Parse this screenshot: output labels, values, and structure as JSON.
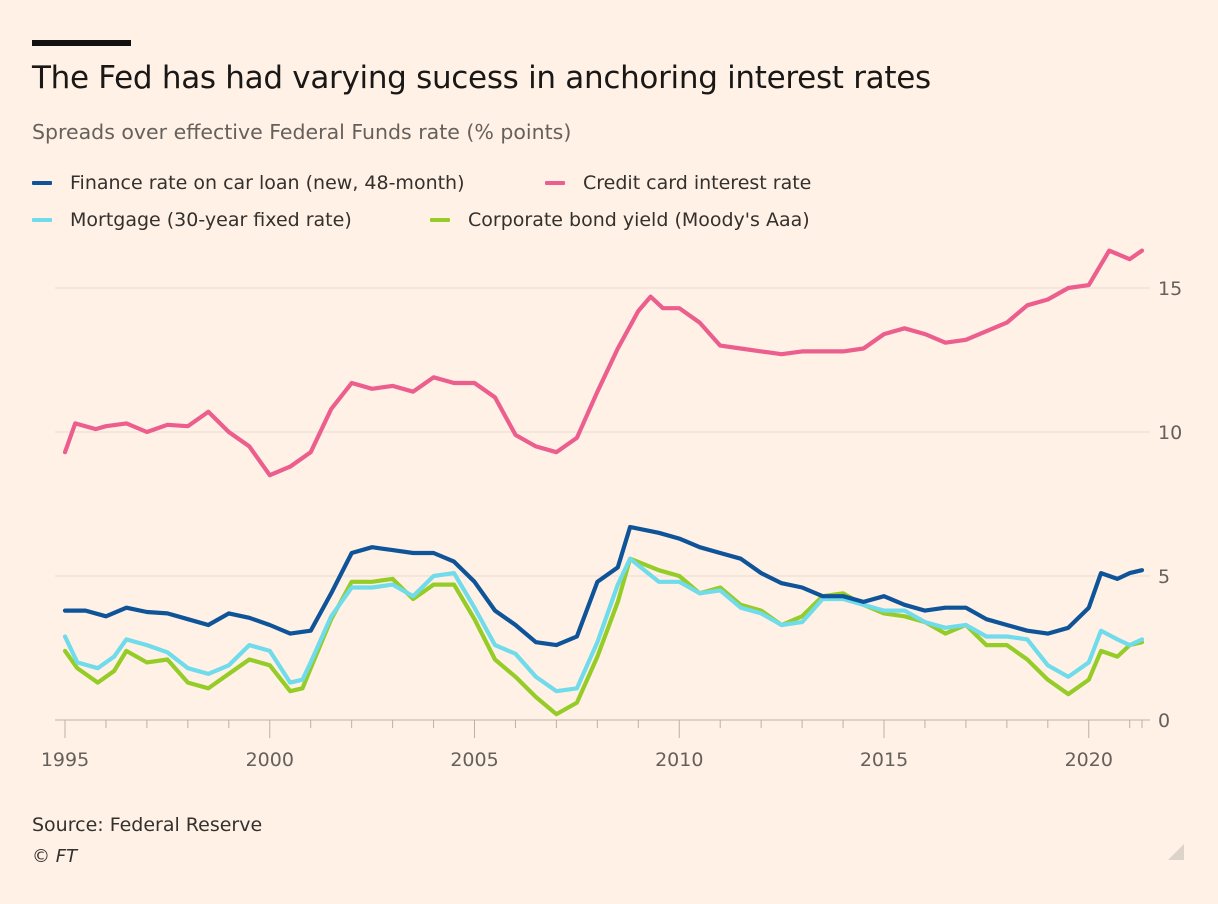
{
  "header": {
    "title": "The Fed has had varying sucess in anchoring interest rates",
    "subtitle": "Spreads over effective Federal Funds rate (% points)"
  },
  "legend": [
    {
      "label": "Finance rate on car loan (new, 48-month)",
      "color": "#0f5499"
    },
    {
      "label": "Credit card interest rate",
      "color": "#eb5e8d"
    },
    {
      "label": "Mortgage (30-year fixed rate)",
      "color": "#70dbea"
    },
    {
      "label": "Corporate bond yield (Moody's Aaa)",
      "color": "#96cc28"
    }
  ],
  "footer": {
    "source": "Source: Federal Reserve",
    "credit": "© FT"
  },
  "chart_data": {
    "type": "line",
    "title": "The Fed has had varying sucess in anchoring interest rates",
    "subtitle": "Spreads over effective Federal Funds rate (% points)",
    "xlabel": "",
    "ylabel": "",
    "xlim": [
      1995,
      2021.3
    ],
    "ylim": [
      0,
      16.5
    ],
    "x_ticks": [
      1995,
      2000,
      2005,
      2010,
      2015,
      2020
    ],
    "y_ticks": [
      0,
      5,
      10,
      15
    ],
    "y_axis_side": "right",
    "grid": "horizontal",
    "series": [
      {
        "name": "Finance rate on car loan (new, 48-month)",
        "color": "#0f5499",
        "points": [
          [
            1995,
            3.8
          ],
          [
            1995.5,
            3.8
          ],
          [
            1996,
            3.6
          ],
          [
            1996.5,
            3.9
          ],
          [
            1997,
            3.75
          ],
          [
            1997.5,
            3.7
          ],
          [
            1998,
            3.5
          ],
          [
            1998.5,
            3.3
          ],
          [
            1999,
            3.7
          ],
          [
            1999.5,
            3.55
          ],
          [
            2000,
            3.3
          ],
          [
            2000.5,
            3.0
          ],
          [
            2001,
            3.1
          ],
          [
            2001.5,
            4.4
          ],
          [
            2002,
            5.8
          ],
          [
            2002.5,
            6.0
          ],
          [
            2003,
            5.9
          ],
          [
            2003.5,
            5.8
          ],
          [
            2004,
            5.8
          ],
          [
            2004.5,
            5.5
          ],
          [
            2005,
            4.8
          ],
          [
            2005.5,
            3.8
          ],
          [
            2006,
            3.3
          ],
          [
            2006.5,
            2.7
          ],
          [
            2007,
            2.6
          ],
          [
            2007.5,
            2.9
          ],
          [
            2008,
            4.8
          ],
          [
            2008.5,
            5.3
          ],
          [
            2008.8,
            6.7
          ],
          [
            2009.5,
            6.5
          ],
          [
            2010,
            6.3
          ],
          [
            2010.5,
            6.0
          ],
          [
            2011,
            5.8
          ],
          [
            2011.5,
            5.6
          ],
          [
            2012,
            5.1
          ],
          [
            2012.5,
            4.75
          ],
          [
            2013,
            4.6
          ],
          [
            2013.5,
            4.3
          ],
          [
            2014,
            4.3
          ],
          [
            2014.5,
            4.1
          ],
          [
            2015,
            4.3
          ],
          [
            2015.5,
            4.0
          ],
          [
            2016,
            3.8
          ],
          [
            2016.5,
            3.9
          ],
          [
            2017,
            3.9
          ],
          [
            2017.5,
            3.5
          ],
          [
            2018,
            3.3
          ],
          [
            2018.5,
            3.1
          ],
          [
            2019,
            3.0
          ],
          [
            2019.5,
            3.2
          ],
          [
            2020,
            3.9
          ],
          [
            2020.3,
            5.1
          ],
          [
            2020.7,
            4.9
          ],
          [
            2021,
            5.1
          ],
          [
            2021.3,
            5.2
          ]
        ]
      },
      {
        "name": "Credit card interest rate",
        "color": "#eb5e8d",
        "points": [
          [
            1995,
            9.3
          ],
          [
            1995.25,
            10.3
          ],
          [
            1995.75,
            10.1
          ],
          [
            1996,
            10.2
          ],
          [
            1996.5,
            10.3
          ],
          [
            1997,
            10.0
          ],
          [
            1997.5,
            10.25
          ],
          [
            1998,
            10.2
          ],
          [
            1998.5,
            10.7
          ],
          [
            1999,
            10.0
          ],
          [
            1999.5,
            9.5
          ],
          [
            2000,
            8.5
          ],
          [
            2000.5,
            8.8
          ],
          [
            2001,
            9.3
          ],
          [
            2001.5,
            10.8
          ],
          [
            2002,
            11.7
          ],
          [
            2002.5,
            11.5
          ],
          [
            2003,
            11.6
          ],
          [
            2003.5,
            11.4
          ],
          [
            2004,
            11.9
          ],
          [
            2004.5,
            11.7
          ],
          [
            2005,
            11.7
          ],
          [
            2005.5,
            11.2
          ],
          [
            2006,
            9.9
          ],
          [
            2006.5,
            9.5
          ],
          [
            2007,
            9.3
          ],
          [
            2007.5,
            9.8
          ],
          [
            2008,
            11.4
          ],
          [
            2008.5,
            12.9
          ],
          [
            2009,
            14.2
          ],
          [
            2009.3,
            14.7
          ],
          [
            2009.6,
            14.3
          ],
          [
            2010,
            14.3
          ],
          [
            2010.5,
            13.8
          ],
          [
            2011,
            13.0
          ],
          [
            2011.5,
            12.9
          ],
          [
            2012,
            12.8
          ],
          [
            2012.5,
            12.7
          ],
          [
            2013,
            12.8
          ],
          [
            2013.5,
            12.8
          ],
          [
            2014,
            12.8
          ],
          [
            2014.5,
            12.9
          ],
          [
            2015,
            13.4
          ],
          [
            2015.5,
            13.6
          ],
          [
            2016,
            13.4
          ],
          [
            2016.5,
            13.1
          ],
          [
            2017,
            13.2
          ],
          [
            2017.5,
            13.5
          ],
          [
            2018,
            13.8
          ],
          [
            2018.5,
            14.4
          ],
          [
            2019,
            14.6
          ],
          [
            2019.5,
            15.0
          ],
          [
            2020,
            15.1
          ],
          [
            2020.5,
            16.3
          ],
          [
            2021,
            16.0
          ],
          [
            2021.3,
            16.3
          ]
        ]
      },
      {
        "name": "Mortgage (30-year fixed rate)",
        "color": "#70dbea",
        "points": [
          [
            1995,
            2.9
          ],
          [
            1995.3,
            2.0
          ],
          [
            1995.8,
            1.8
          ],
          [
            1996.2,
            2.2
          ],
          [
            1996.5,
            2.8
          ],
          [
            1997,
            2.6
          ],
          [
            1997.5,
            2.35
          ],
          [
            1998,
            1.8
          ],
          [
            1998.5,
            1.6
          ],
          [
            1999,
            1.9
          ],
          [
            1999.5,
            2.6
          ],
          [
            2000,
            2.4
          ],
          [
            2000.5,
            1.3
          ],
          [
            2000.8,
            1.4
          ],
          [
            2001,
            2.0
          ],
          [
            2001.5,
            3.6
          ],
          [
            2002,
            4.6
          ],
          [
            2002.5,
            4.6
          ],
          [
            2003,
            4.7
          ],
          [
            2003.5,
            4.3
          ],
          [
            2004,
            5.0
          ],
          [
            2004.5,
            5.1
          ],
          [
            2005,
            3.9
          ],
          [
            2005.5,
            2.6
          ],
          [
            2006,
            2.3
          ],
          [
            2006.5,
            1.5
          ],
          [
            2007,
            1.0
          ],
          [
            2007.5,
            1.1
          ],
          [
            2008,
            2.7
          ],
          [
            2008.5,
            4.7
          ],
          [
            2008.8,
            5.6
          ],
          [
            2009.5,
            4.8
          ],
          [
            2010,
            4.8
          ],
          [
            2010.5,
            4.4
          ],
          [
            2011,
            4.5
          ],
          [
            2011.5,
            3.9
          ],
          [
            2012,
            3.7
          ],
          [
            2012.5,
            3.3
          ],
          [
            2013,
            3.4
          ],
          [
            2013.5,
            4.2
          ],
          [
            2014,
            4.2
          ],
          [
            2014.5,
            4.0
          ],
          [
            2015,
            3.8
          ],
          [
            2015.5,
            3.8
          ],
          [
            2016,
            3.4
          ],
          [
            2016.5,
            3.2
          ],
          [
            2017,
            3.3
          ],
          [
            2017.5,
            2.9
          ],
          [
            2018,
            2.9
          ],
          [
            2018.5,
            2.8
          ],
          [
            2019,
            1.9
          ],
          [
            2019.5,
            1.5
          ],
          [
            2020,
            2.0
          ],
          [
            2020.3,
            3.1
          ],
          [
            2020.7,
            2.8
          ],
          [
            2021,
            2.6
          ],
          [
            2021.3,
            2.8
          ]
        ]
      },
      {
        "name": "Corporate bond yield (Moody's Aaa)",
        "color": "#96cc28",
        "points": [
          [
            1995,
            2.4
          ],
          [
            1995.3,
            1.8
          ],
          [
            1995.8,
            1.3
          ],
          [
            1996.2,
            1.7
          ],
          [
            1996.5,
            2.4
          ],
          [
            1997,
            2.0
          ],
          [
            1997.5,
            2.1
          ],
          [
            1998,
            1.3
          ],
          [
            1998.5,
            1.1
          ],
          [
            1999,
            1.6
          ],
          [
            1999.5,
            2.1
          ],
          [
            2000,
            1.9
          ],
          [
            2000.5,
            1.0
          ],
          [
            2000.8,
            1.1
          ],
          [
            2001,
            1.8
          ],
          [
            2001.5,
            3.5
          ],
          [
            2002,
            4.8
          ],
          [
            2002.5,
            4.8
          ],
          [
            2003,
            4.9
          ],
          [
            2003.5,
            4.2
          ],
          [
            2004,
            4.7
          ],
          [
            2004.5,
            4.7
          ],
          [
            2005,
            3.5
          ],
          [
            2005.5,
            2.1
          ],
          [
            2006,
            1.5
          ],
          [
            2006.5,
            0.8
          ],
          [
            2007,
            0.2
          ],
          [
            2007.5,
            0.6
          ],
          [
            2008,
            2.2
          ],
          [
            2008.5,
            4.1
          ],
          [
            2008.8,
            5.6
          ],
          [
            2009.5,
            5.2
          ],
          [
            2010,
            5.0
          ],
          [
            2010.5,
            4.4
          ],
          [
            2011,
            4.6
          ],
          [
            2011.5,
            4.0
          ],
          [
            2012,
            3.8
          ],
          [
            2012.5,
            3.3
          ],
          [
            2013,
            3.6
          ],
          [
            2013.5,
            4.3
          ],
          [
            2014,
            4.4
          ],
          [
            2014.5,
            4.0
          ],
          [
            2015,
            3.7
          ],
          [
            2015.5,
            3.6
          ],
          [
            2016,
            3.4
          ],
          [
            2016.5,
            3.0
          ],
          [
            2017,
            3.3
          ],
          [
            2017.5,
            2.6
          ],
          [
            2018,
            2.6
          ],
          [
            2018.5,
            2.1
          ],
          [
            2019,
            1.4
          ],
          [
            2019.5,
            0.9
          ],
          [
            2020,
            1.4
          ],
          [
            2020.3,
            2.4
          ],
          [
            2020.7,
            2.2
          ],
          [
            2021,
            2.6
          ],
          [
            2021.3,
            2.7
          ]
        ]
      }
    ]
  }
}
